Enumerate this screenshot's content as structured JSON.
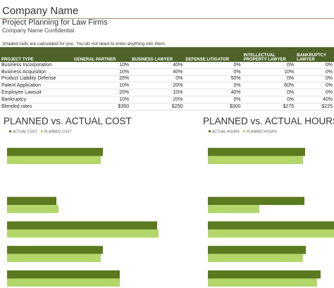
{
  "header": {
    "title": "Company Name",
    "subtitle": "Project Planning for Law Firms",
    "confidential": "Company Name Confidential"
  },
  "note": "Shaded cells are calculated for you. You do not need to enter anything into them.",
  "table": {
    "columns": [
      "PROJECT TYPE",
      "GENERAL PARTNER",
      "BUSINESS LAWYER",
      "DEFENSE LITIGATOR",
      "INTELLECTUAL PROPERTY LAWYER",
      "BANKRUPTCY LAWYER"
    ],
    "rows": [
      [
        "Business Incorporation",
        "10%",
        "40%",
        "0%",
        "0%",
        "0%"
      ],
      [
        "Business Acquisition",
        "10%",
        "40%",
        "0%",
        "10%",
        "0%"
      ],
      [
        "Product Liability Defense",
        "20%",
        "0%",
        "50%",
        "0%",
        "0%"
      ],
      [
        "Patent Application",
        "10%",
        "20%",
        "0%",
        "60%",
        "0%"
      ],
      [
        "Employee Lawsuit",
        "20%",
        "10%",
        "40%",
        "0%",
        "0%"
      ],
      [
        "Bankruptcy",
        "10%",
        "20%",
        "0%",
        "0%",
        "40%"
      ],
      [
        "Blended rates",
        "$350",
        "$250",
        "$300",
        "$275",
        "$225"
      ]
    ]
  },
  "chart_data": [
    {
      "type": "bar",
      "orientation": "horizontal",
      "title": "PLANNED vs. ACTUAL COST",
      "categories": [
        null,
        null,
        null,
        null,
        null,
        null
      ],
      "series": [
        {
          "name": "ACTUAL COST",
          "color": "#5b7a1f",
          "values": [
            136,
            0,
            70,
            213,
            136,
            160
          ]
        },
        {
          "name": "PLANNED COST",
          "color": "#b3d66b",
          "values": [
            133,
            0,
            73,
            215,
            133,
            160
          ]
        }
      ]
    },
    {
      "type": "bar",
      "orientation": "horizontal",
      "title": "PLANNED vs. ACTUAL HOURS",
      "categories": [
        null,
        null,
        null,
        null,
        null,
        null
      ],
      "series": [
        {
          "name": "ACTUAL HOURS",
          "color": "#5b7a1f",
          "values": [
            138,
            0,
            137,
            180,
            139,
            160
          ]
        },
        {
          "name": "PLANNED HOURS",
          "color": "#b3d66b",
          "values": [
            135,
            0,
            73,
            180,
            135,
            155
          ]
        }
      ]
    }
  ]
}
